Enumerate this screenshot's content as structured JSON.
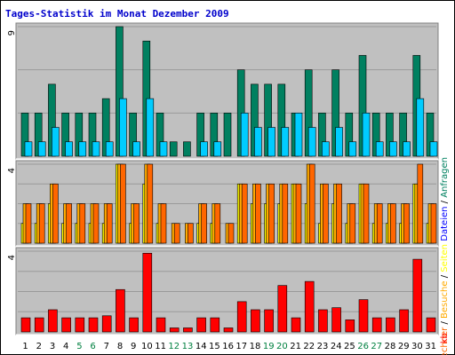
{
  "chart_data": {
    "type": "bar",
    "title": "Tages-Statistik im Monat Dezember 2009",
    "x": [
      "1",
      "2",
      "3",
      "4",
      "5",
      "6",
      "7",
      "8",
      "9",
      "10",
      "11",
      "12",
      "13",
      "14",
      "15",
      "16",
      "17",
      "18",
      "19",
      "20",
      "21",
      "22",
      "23",
      "24",
      "25",
      "26",
      "27",
      "28",
      "29",
      "30",
      "31"
    ],
    "weekend_days": [
      "5",
      "6",
      "12",
      "13",
      "19",
      "20",
      "26",
      "27"
    ],
    "colors": {
      "background": "#c0c0c0",
      "grid": "#9a9a9a",
      "weekday_label": "#000000",
      "weekend_label": "#008040",
      "title": "#0000cc"
    },
    "panels": [
      {
        "ylim": [
          0,
          9
        ],
        "y_tick_label": "9",
        "right_label": [
          {
            "text": "Dateien",
            "color": "#0000ff"
          },
          {
            "text": " / ",
            "color": "#000000"
          },
          {
            "text": "Anfragen",
            "color": "#008060"
          }
        ],
        "series": [
          {
            "color": "#008060",
            "values": [
              3,
              3,
              5,
              3,
              3,
              3,
              4,
              9,
              3,
              8,
              3,
              1,
              1,
              3,
              3,
              3,
              6,
              5,
              5,
              5,
              3,
              6,
              3,
              6,
              3,
              7,
              3,
              3,
              3,
              7,
              3
            ]
          },
          {
            "color": "#00ccff",
            "values": [
              1,
              1,
              2,
              1,
              1,
              1,
              1,
              4,
              1,
              4,
              1,
              0,
              0,
              1,
              1,
              0,
              3,
              2,
              2,
              2,
              3,
              2,
              1,
              2,
              1,
              3,
              1,
              1,
              1,
              4,
              1
            ]
          }
        ]
      },
      {
        "ylim": [
          0,
          4
        ],
        "y_tick_label": "4",
        "right_label": [
          {
            "text": "Rechner",
            "color": "#ff6600"
          },
          {
            "text": " / ",
            "color": "#000000"
          },
          {
            "text": "Besuche",
            "color": "#ffaa00"
          },
          {
            "text": " / ",
            "color": "#000000"
          },
          {
            "text": "Seiten",
            "color": "#ffff00"
          }
        ],
        "series": [
          {
            "color": "#ffff00",
            "values": [
              1,
              1,
              2,
              1,
              1,
              1,
              1,
              4,
              1,
              3,
              1,
              0,
              0,
              1,
              1,
              0,
              3,
              2,
              2,
              2,
              3,
              2,
              1,
              2,
              1,
              3,
              1,
              1,
              1,
              3,
              1
            ]
          },
          {
            "color": "#ffaa00",
            "values": [
              2,
              2,
              3,
              2,
              2,
              2,
              2,
              4,
              2,
              4,
              2,
              1,
              1,
              2,
              2,
              1,
              3,
              3,
              3,
              3,
              3,
              4,
              3,
              3,
              2,
              3,
              2,
              2,
              2,
              3,
              2
            ]
          },
          {
            "color": "#ff6600",
            "values": [
              2,
              2,
              3,
              2,
              2,
              2,
              2,
              4,
              2,
              4,
              2,
              1,
              1,
              2,
              2,
              1,
              3,
              3,
              3,
              3,
              3,
              4,
              3,
              3,
              2,
              3,
              2,
              2,
              2,
              4,
              2
            ]
          }
        ]
      },
      {
        "ylim": [
          0,
          4
        ],
        "y_tick_label": "4",
        "right_label": [
          {
            "text": "kb",
            "color": "#ff0000"
          }
        ],
        "series": [
          {
            "color": "#ff0000",
            "values": [
              0.7,
              0.7,
              1.1,
              0.7,
              0.7,
              0.7,
              0.8,
              2.1,
              0.7,
              3.9,
              0.7,
              0.2,
              0.2,
              0.7,
              0.7,
              0.2,
              1.5,
              1.1,
              1.1,
              2.3,
              0.7,
              2.5,
              1.1,
              1.2,
              0.6,
              1.6,
              0.7,
              0.7,
              1.1,
              3.6,
              0.7
            ]
          }
        ]
      }
    ]
  }
}
